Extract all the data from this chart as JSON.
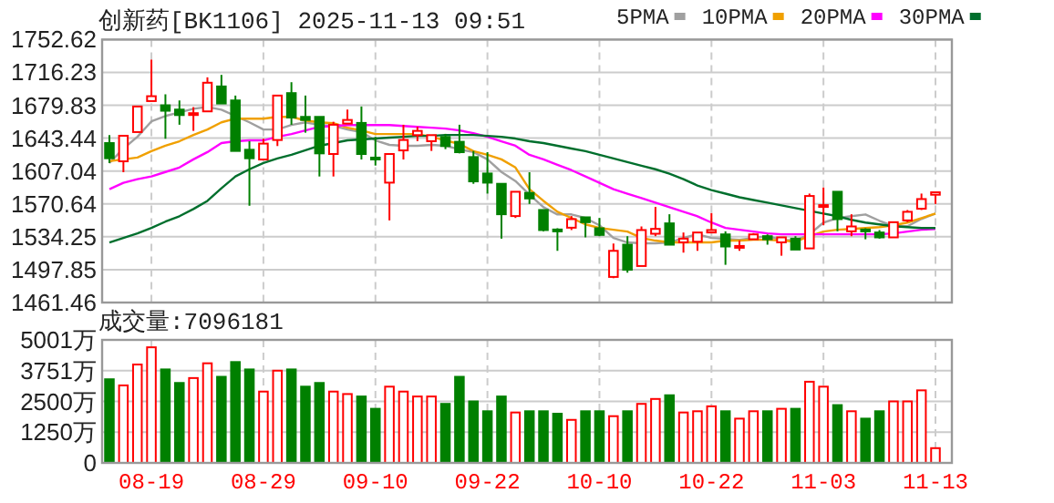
{
  "chart_data": [
    {
      "type": "candlestick",
      "title": "创新药[BK1106]  2025-11-13 09:51",
      "tick_labels": "y",
      "grid": true,
      "legend": "top right",
      "categories": [
        null,
        null,
        null,
        null,
        null,
        null,
        null,
        null,
        null,
        null,
        null,
        null,
        null,
        null,
        null,
        null,
        null,
        null,
        null,
        null,
        null,
        null,
        null,
        null,
        null,
        null,
        null,
        null,
        null,
        null,
        null,
        null,
        null,
        null,
        null,
        null,
        null,
        null,
        null,
        null,
        null,
        null,
        null,
        null,
        null,
        null,
        null,
        null,
        null,
        null,
        null,
        null,
        null,
        null,
        null,
        null,
        null,
        null,
        null,
        null
      ],
      "ohlc": [
        [
          1638.0,
          1646.8,
          1615.8,
          1621.2
        ],
        [
          1617.8,
          1646.1,
          1605.7,
          1646.1
        ],
        [
          1650.2,
          1678.5,
          1650.2,
          1678.5
        ],
        [
          1684.5,
          1730.4,
          1684.5,
          1689.9
        ],
        [
          1679.8,
          1692.0,
          1642.8,
          1673.8
        ],
        [
          1675.1,
          1685.2,
          1658.3,
          1669.0
        ],
        [
          1669.7,
          1677.8,
          1651.5,
          1671.1
        ],
        [
          1673.1,
          1710.8,
          1673.1,
          1704.8
        ],
        [
          1700.7,
          1713.5,
          1681.8,
          1681.8
        ],
        [
          1685.2,
          1690.6,
          1629.3,
          1629.3
        ],
        [
          1630.6,
          1640.1,
          1568.6,
          1621.2
        ],
        [
          1619.8,
          1642.8,
          1619.8,
          1637.4
        ],
        [
          1641.4,
          1690.6,
          1634.7,
          1690.6
        ],
        [
          1693.3,
          1705.4,
          1658.3,
          1666.3
        ],
        [
          1667.0,
          1690.6,
          1649.5,
          1663.6
        ],
        [
          1667.0,
          1667.0,
          1601.0,
          1626.6
        ],
        [
          1625.9,
          1661.6,
          1601.0,
          1658.3
        ],
        [
          1659.6,
          1675.1,
          1659.6,
          1663.6
        ],
        [
          1660.3,
          1678.5,
          1619.8,
          1625.9
        ],
        [
          1621.9,
          1644.8,
          1613.1,
          1620.5
        ],
        [
          1594.2,
          1625.9,
          1552.4,
          1625.9
        ],
        [
          1629.9,
          1658.3,
          1619.8,
          1641.4
        ],
        [
          1646.8,
          1656.2,
          1640.1,
          1651.5
        ],
        [
          1640.1,
          1646.8,
          1629.3,
          1646.8
        ],
        [
          1644.8,
          1648.2,
          1631.3,
          1634.7
        ],
        [
          1639.4,
          1658.3,
          1626.6,
          1627.9
        ],
        [
          1622.5,
          1629.3,
          1592.9,
          1595.6
        ],
        [
          1604.3,
          1627.9,
          1582.1,
          1594.2
        ],
        [
          1592.9,
          1592.9,
          1532.2,
          1559.2
        ],
        [
          1557.2,
          1584.1,
          1555.1,
          1584.1
        ],
        [
          1582.8,
          1605.7,
          1570.6,
          1576.7
        ],
        [
          1563.9,
          1563.9,
          1540.3,
          1541.7
        ],
        [
          1542.3,
          1543.7,
          1518.7,
          1541.0
        ],
        [
          1544.3,
          1557.2,
          1541.7,
          1553.8
        ],
        [
          1555.8,
          1555.8,
          1533.6,
          1550.4
        ],
        [
          1543.7,
          1555.1,
          1534.9,
          1536.3
        ],
        [
          1489.8,
          1526.8,
          1488.4,
          1518.7
        ],
        [
          1525.5,
          1534.9,
          1494.5,
          1497.8
        ],
        [
          1501.9,
          1545.7,
          1501.9,
          1541.7
        ],
        [
          1537.6,
          1567.3,
          1534.9,
          1543.0
        ],
        [
          1549.1,
          1559.2,
          1525.5,
          1525.5
        ],
        [
          1528.1,
          1539.0,
          1516.7,
          1532.2
        ],
        [
          1528.8,
          1539.0,
          1518.7,
          1539.0
        ],
        [
          1539.0,
          1560.5,
          1539.0,
          1541.7
        ],
        [
          1536.9,
          1540.3,
          1503.2,
          1523.5
        ],
        [
          1522.8,
          1530.2,
          1518.7,
          1524.1
        ],
        [
          1531.5,
          1538.3,
          1531.5,
          1536.9
        ],
        [
          1534.9,
          1536.9,
          1525.5,
          1531.5
        ],
        [
          1528.1,
          1533.6,
          1513.3,
          1533.6
        ],
        [
          1532.2,
          1534.9,
          1520.1,
          1520.1
        ],
        [
          1521.4,
          1582.1,
          1521.4,
          1579.4
        ],
        [
          1568.0,
          1588.8,
          1547.1,
          1569.3
        ],
        [
          1584.1,
          1584.1,
          1540.3,
          1553.8
        ],
        [
          1540.3,
          1559.2,
          1534.9,
          1545.7
        ],
        [
          1542.3,
          1543.7,
          1531.5,
          1541.0
        ],
        [
          1539.0,
          1541.7,
          1532.2,
          1533.6
        ],
        [
          1533.6,
          1550.4,
          1533.6,
          1550.4
        ],
        [
          1552.4,
          1563.9,
          1550.4,
          1561.9
        ],
        [
          1565.3,
          1582.1,
          1563.9,
          1576.0
        ],
        [
          1580.8,
          1583.5,
          1570.6,
          1583.5
        ]
      ],
      "colors": [
        "#008000",
        "#ff0000",
        "#ff0000",
        "#ff0000",
        "#008000",
        "#008000",
        "#ff0000",
        "#ff0000",
        "#008000",
        "#008000",
        "#008000",
        "#ff0000",
        "#ff0000",
        "#008000",
        "#008000",
        "#008000",
        "#ff0000",
        "#ff0000",
        "#008000",
        "#008000",
        "#ff0000",
        "#ff0000",
        "#ff0000",
        "#ff0000",
        "#008000",
        "#008000",
        "#008000",
        "#008000",
        "#008000",
        "#ff0000",
        "#008000",
        "#008000",
        "#008000",
        "#ff0000",
        "#008000",
        "#008000",
        "#ff0000",
        "#008000",
        "#ff0000",
        "#ff0000",
        "#008000",
        "#ff0000",
        "#ff0000",
        "#ff0000",
        "#008000",
        "#ff0000",
        "#ff0000",
        "#008000",
        "#ff0000",
        "#008000",
        "#ff0000",
        "#ff0000",
        "#008000",
        "#ff0000",
        "#008000",
        "#008000",
        "#ff0000",
        "#ff0000",
        "#ff0000",
        "#ff0000"
      ],
      "series": [
        {
          "name": "5PMA",
          "type": "line",
          "color": "#a0a0a0",
          "values": [
            1616,
            1632,
            1645,
            1662,
            1668,
            1672,
            1676,
            1678,
            1675,
            1668,
            1661,
            1653,
            1653,
            1658,
            1661,
            1658,
            1657,
            1653,
            1650,
            1641,
            1636,
            1635,
            1635,
            1636,
            1635,
            1631,
            1628,
            1620,
            1606,
            1596,
            1581,
            1567,
            1559,
            1559,
            1555,
            1547,
            1533,
            1528,
            1527,
            1527,
            1528,
            1533,
            1537,
            1533,
            1532,
            1531,
            1533,
            1535,
            1531,
            1530,
            1537,
            1550,
            1555,
            1557,
            1559,
            1552,
            1546,
            1546,
            1554,
            1560
          ]
        },
        {
          "name": "10PMA",
          "type": "line",
          "color": "#f0a000",
          "values": [
            1618,
            1620,
            1622,
            1629,
            1635,
            1640,
            1647,
            1653,
            1661,
            1665,
            1665,
            1665,
            1667,
            1667,
            1663,
            1661,
            1660,
            1655,
            1652,
            1648,
            1648,
            1648,
            1648,
            1645,
            1641,
            1637,
            1629,
            1625,
            1620,
            1611,
            1587,
            1574,
            1562,
            1555,
            1548,
            1544,
            1542,
            1540,
            1533,
            1530,
            1528,
            1528,
            1528,
            1528,
            1530,
            1530,
            1531,
            1531,
            1530,
            1529,
            1535,
            1540,
            1542,
            1543,
            1544,
            1545,
            1547,
            1550,
            1555,
            1560
          ]
        },
        {
          "name": "20PMA",
          "type": "line",
          "color": "#ff00ff",
          "values": [
            1587,
            1594,
            1598,
            1601,
            1606,
            1611,
            1620,
            1628,
            1638,
            1640,
            1641,
            1641,
            1645,
            1648,
            1652,
            1656,
            1657,
            1658,
            1658,
            1658,
            1658,
            1657,
            1656,
            1655,
            1654,
            1652,
            1649,
            1645,
            1640,
            1635,
            1625,
            1620,
            1614,
            1608,
            1601,
            1594,
            1587,
            1582,
            1577,
            1572,
            1567,
            1562,
            1557,
            1550,
            1544,
            1542,
            1540,
            1538,
            1537,
            1537,
            1537,
            1537,
            1537,
            1537,
            1537,
            1537,
            1538,
            1540,
            1542,
            1543
          ]
        },
        {
          "name": "30PMA",
          "type": "line",
          "color": "#006f2d",
          "values": [
            1528,
            1533,
            1538,
            1544,
            1551,
            1557,
            1565,
            1574,
            1588,
            1601,
            1609,
            1616,
            1621,
            1625,
            1630,
            1635,
            1638,
            1641,
            1642,
            1643,
            1644,
            1645,
            1646,
            1646,
            1647,
            1647,
            1647,
            1646,
            1645,
            1643,
            1640,
            1638,
            1635,
            1632,
            1629,
            1625,
            1621,
            1617,
            1613,
            1609,
            1604,
            1598,
            1591,
            1586,
            1582,
            1578,
            1575,
            1572,
            1569,
            1566,
            1563,
            1560,
            1557,
            1553,
            1550,
            1548,
            1546,
            1545,
            1544,
            1544
          ]
        }
      ],
      "ylim": [
        1461.46,
        1752.62
      ],
      "yticks": [
        1461.46,
        1497.85,
        1534.25,
        1570.64,
        1607.04,
        1643.44,
        1679.83,
        1716.23,
        1752.62
      ]
    },
    {
      "type": "bar",
      "title": "成交量:7096181",
      "grid": true,
      "categories": [
        null,
        null,
        null,
        "08-19",
        null,
        null,
        null,
        null,
        null,
        null,
        null,
        "08-29",
        null,
        null,
        null,
        null,
        null,
        null,
        null,
        "09-10",
        null,
        null,
        null,
        null,
        null,
        null,
        null,
        "09-22",
        null,
        null,
        null,
        null,
        null,
        null,
        null,
        "10-10",
        null,
        null,
        null,
        null,
        null,
        null,
        null,
        "10-22",
        null,
        null,
        null,
        null,
        null,
        null,
        null,
        "11-03",
        null,
        null,
        null,
        null,
        null,
        null,
        null,
        "11-13"
      ],
      "values": [
        3400,
        3150,
        4000,
        4700,
        3800,
        3250,
        3450,
        4050,
        3500,
        4100,
        3800,
        2900,
        3750,
        3800,
        3100,
        3250,
        2900,
        2800,
        2700,
        2200,
        3100,
        2900,
        2700,
        2700,
        2400,
        3500,
        2500,
        2100,
        2700,
        2050,
        2100,
        2100,
        2000,
        1750,
        2100,
        2100,
        1900,
        2100,
        2400,
        2600,
        2750,
        2050,
        2100,
        2300,
        2100,
        1800,
        2100,
        2100,
        2200,
        2200,
        3300,
        3100,
        2350,
        2100,
        1800,
        2100,
        2500,
        2500,
        2950,
        600
      ],
      "colors": [
        "#008000",
        "#ff0000",
        "#ff0000",
        "#ff0000",
        "#008000",
        "#008000",
        "#ff0000",
        "#ff0000",
        "#008000",
        "#008000",
        "#008000",
        "#ff0000",
        "#ff0000",
        "#008000",
        "#008000",
        "#008000",
        "#ff0000",
        "#ff0000",
        "#008000",
        "#008000",
        "#ff0000",
        "#ff0000",
        "#ff0000",
        "#ff0000",
        "#008000",
        "#008000",
        "#008000",
        "#008000",
        "#008000",
        "#ff0000",
        "#008000",
        "#008000",
        "#008000",
        "#ff0000",
        "#008000",
        "#008000",
        "#ff0000",
        "#008000",
        "#ff0000",
        "#ff0000",
        "#008000",
        "#ff0000",
        "#ff0000",
        "#ff0000",
        "#008000",
        "#ff0000",
        "#ff0000",
        "#008000",
        "#ff0000",
        "#008000",
        "#ff0000",
        "#ff0000",
        "#008000",
        "#ff0000",
        "#008000",
        "#008000",
        "#ff0000",
        "#ff0000",
        "#ff0000",
        "#ff0000"
      ],
      "ylim": [
        0,
        5001
      ],
      "yticks": [
        0,
        {
          "value": 1250,
          "label": "1250万"
        },
        {
          "value": 2500,
          "label": "2500万"
        },
        {
          "value": 3751,
          "label": "3751万"
        },
        {
          "value": 5001,
          "label": "5001万"
        }
      ]
    }
  ]
}
